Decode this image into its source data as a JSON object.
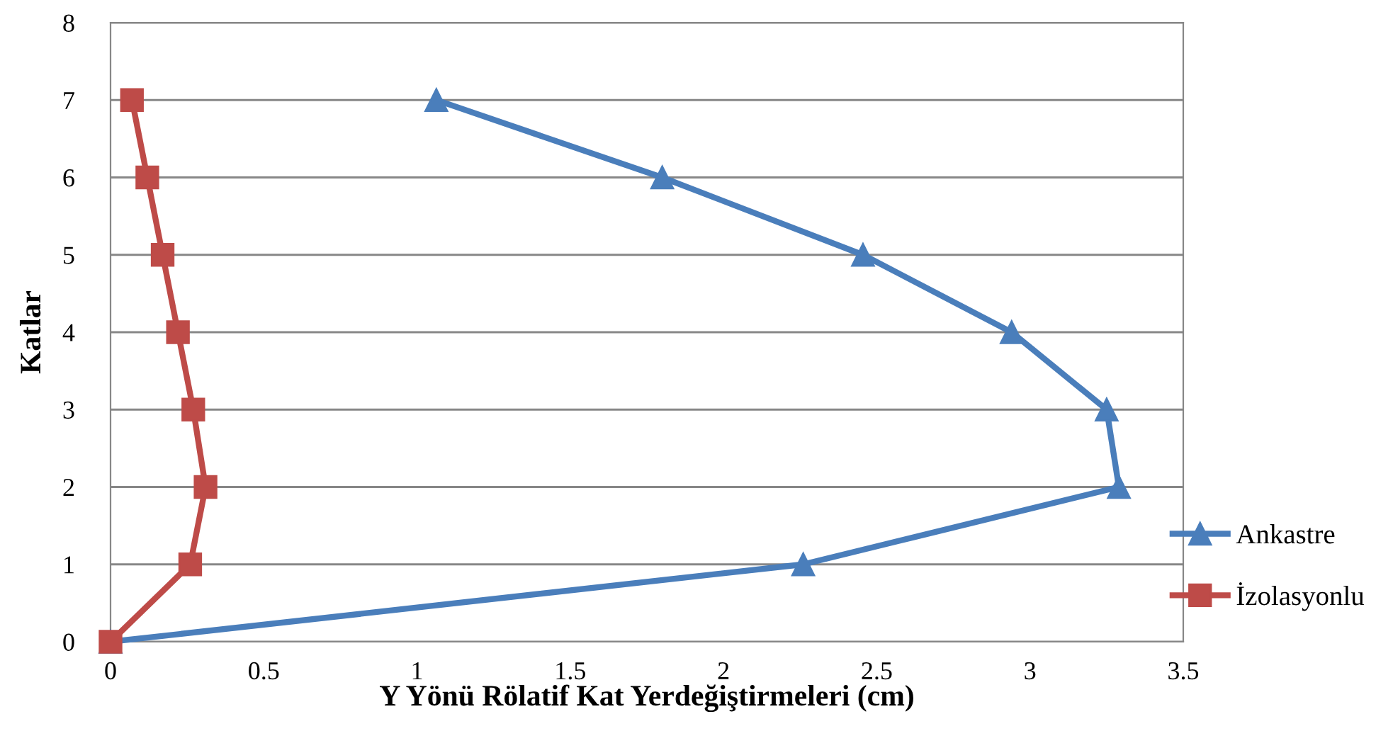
{
  "chart_data": {
    "type": "line",
    "xlabel": "Y Yönü Rölatif Kat Yerdeğiştirmeleri (cm)",
    "ylabel": "Katlar",
    "xlim": [
      0,
      3.5
    ],
    "xticks": [
      0,
      0.5,
      1,
      1.5,
      2,
      2.5,
      3,
      3.5
    ],
    "ylim": [
      0,
      8
    ],
    "yticks": [
      0,
      1,
      2,
      3,
      4,
      5,
      6,
      7,
      8
    ],
    "grid": "y",
    "legend": "right",
    "line_style": "solid",
    "series": [
      {
        "name": "Ankastre",
        "color": "#4a7ebb",
        "marker": "triangle",
        "x": [
          0,
          2.26,
          3.29,
          3.25,
          2.94,
          2.455,
          1.8,
          1.063
        ],
        "values": [
          0,
          1,
          2,
          3,
          4,
          5,
          6,
          7
        ]
      },
      {
        "name": "İzolasyonlu",
        "color": "#be4b48",
        "marker": "square",
        "x": [
          0,
          0.26,
          0.31,
          0.27,
          0.22,
          0.17,
          0.12,
          0.07
        ],
        "values": [
          0,
          1,
          2,
          3,
          4,
          5,
          6,
          7
        ]
      }
    ]
  }
}
